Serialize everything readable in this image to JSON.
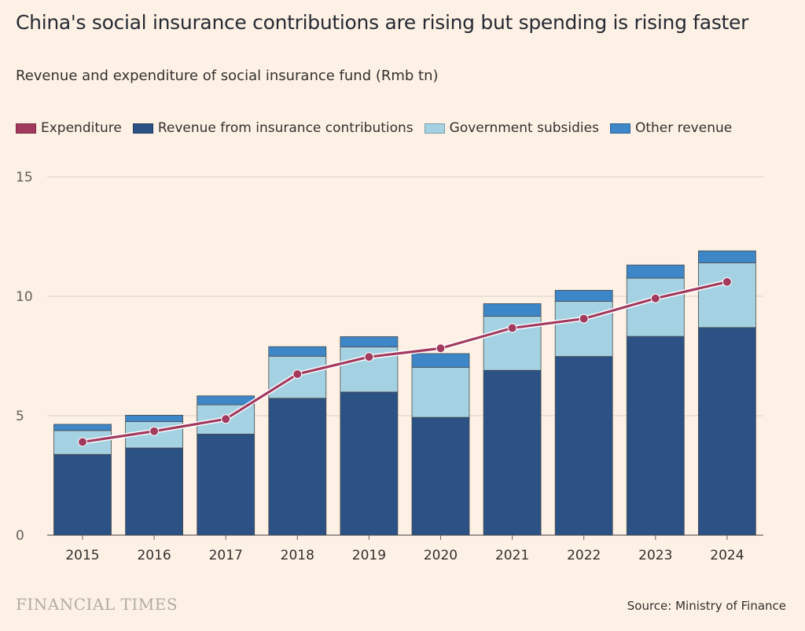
{
  "header": {
    "title": "China's social insurance contributions are rising but spending is rising faster",
    "subtitle": "Revenue and expenditure of social insurance fund (Rmb tn)"
  },
  "legend": [
    {
      "label": "Expenditure",
      "color": "#a23a5e"
    },
    {
      "label": "Revenue from insurance contributions",
      "color": "#2c5185"
    },
    {
      "label": "Government subsidies",
      "color": "#a5d2e3"
    },
    {
      "label": "Other revenue",
      "color": "#3d87c9"
    }
  ],
  "footer": {
    "brand": "FINANCIAL TIMES",
    "source": "Source: Ministry of Finance"
  },
  "chart_data": {
    "type": "bar",
    "stacked": true,
    "title": "China's social insurance contributions are rising but spending is rising faster",
    "subtitle": "Revenue and expenditure of social insurance fund (Rmb tn)",
    "categories": [
      "2015",
      "2016",
      "2017",
      "2018",
      "2019",
      "2020",
      "2021",
      "2022",
      "2023",
      "2024"
    ],
    "series": [
      {
        "name": "Revenue from insurance contributions",
        "type": "bar",
        "color": "#2c5185",
        "values": [
          3.38,
          3.65,
          4.23,
          5.73,
          5.99,
          4.93,
          6.9,
          7.48,
          8.32,
          8.69
        ]
      },
      {
        "name": "Government subsidies",
        "type": "bar",
        "color": "#a5d2e3",
        "values": [
          1.0,
          1.1,
          1.23,
          1.76,
          1.89,
          2.09,
          2.26,
          2.31,
          2.44,
          2.71
        ]
      },
      {
        "name": "Other revenue",
        "type": "bar",
        "color": "#3d87c9",
        "values": [
          0.26,
          0.27,
          0.37,
          0.4,
          0.43,
          0.58,
          0.53,
          0.46,
          0.55,
          0.5
        ]
      },
      {
        "name": "Expenditure",
        "type": "line",
        "color": "#a23a5e",
        "values": [
          3.9,
          4.35,
          4.86,
          6.74,
          7.46,
          7.82,
          8.67,
          9.06,
          9.91,
          10.6
        ]
      }
    ],
    "ylim": [
      0,
      15
    ],
    "yticks": [
      0,
      5,
      10,
      15
    ],
    "xlabel": "",
    "ylabel": "",
    "grid": true,
    "legend_position": "top-left"
  }
}
